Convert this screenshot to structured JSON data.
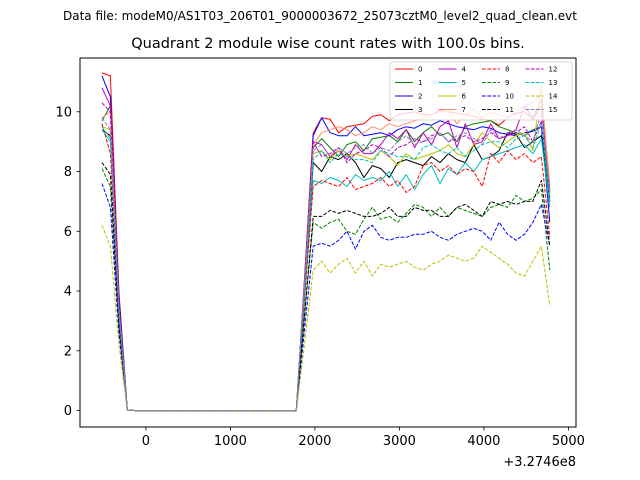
{
  "figure": {
    "suptitle": "Data file: modeM0/AS1T03_206T01_9000003672_25073cztM0_level2_quad_clean.evt"
  },
  "chart_data": {
    "type": "line",
    "title": "Quadrant 2 module wise count rates with 100.0s bins.",
    "xlabel": "",
    "ylabel": "",
    "x_offset_label": "+3.2746e8",
    "xlim": [
      -780,
      5090
    ],
    "ylim": [
      -0.55,
      11.8
    ],
    "xticks": [
      0,
      1000,
      2000,
      3000,
      4000,
      5000
    ],
    "xtick_labels": [
      "0",
      "1000",
      "2000",
      "3000",
      "4000",
      "5000"
    ],
    "yticks": [
      0,
      2,
      4,
      6,
      8,
      10
    ],
    "ytick_labels": [
      "0",
      "2",
      "4",
      "6",
      "8",
      "10"
    ],
    "legend_position": "top-right",
    "legend_columns": 4,
    "x": [
      -520,
      -420,
      -320,
      -220,
      -120,
      -20,
      80,
      180,
      280,
      380,
      480,
      580,
      680,
      780,
      880,
      980,
      1080,
      1180,
      1280,
      1380,
      1480,
      1580,
      1680,
      1780,
      1880,
      1980,
      2080,
      2180,
      2280,
      2380,
      2480,
      2580,
      2680,
      2780,
      2880,
      2980,
      3080,
      3180,
      3280,
      3380,
      3480,
      3580,
      3680,
      3780,
      3880,
      3980,
      4080,
      4180,
      4280,
      4380,
      4480,
      4580,
      4680,
      4780
    ],
    "series": [
      {
        "name": "0",
        "color": "#ff0000",
        "dash": "solid",
        "values": [
          11.3,
          11.2,
          4.0,
          0.02,
          0,
          0,
          0,
          0,
          0,
          0,
          0,
          0,
          0,
          0,
          0,
          0,
          0,
          0,
          0,
          0,
          0,
          0,
          0,
          0,
          4.6,
          9.3,
          9.8,
          9.75,
          9.3,
          9.5,
          9.55,
          9.6,
          9.85,
          9.9,
          9.7,
          9.9,
          9.95,
          10.0,
          9.9,
          9.9,
          10.05,
          10.0,
          9.95,
          9.9,
          9.85,
          9.75,
          9.7,
          9.55,
          9.8,
          9.95,
          10.0,
          9.75,
          10.2,
          7.4
        ]
      },
      {
        "name": "1",
        "color": "#008000",
        "dash": "solid",
        "values": [
          9.7,
          10.2,
          3.5,
          0.02,
          0,
          0,
          0,
          0,
          0,
          0,
          0,
          0,
          0,
          0,
          0,
          0,
          0,
          0,
          0,
          0,
          0,
          0,
          0,
          0,
          4.3,
          8.8,
          9.1,
          8.8,
          8.5,
          8.9,
          9.0,
          8.7,
          9.1,
          9.15,
          9.2,
          9.0,
          9.4,
          9.0,
          9.3,
          9.5,
          9.2,
          9.3,
          9.0,
          9.5,
          9.6,
          9.65,
          9.7,
          9.5,
          9.4,
          9.3,
          9.2,
          9.4,
          9.5,
          7.3
        ]
      },
      {
        "name": "2",
        "color": "#0000ff",
        "dash": "solid",
        "values": [
          11.2,
          10.5,
          3.8,
          0.02,
          0,
          0,
          0,
          0,
          0,
          0,
          0,
          0,
          0,
          0,
          0,
          0,
          0,
          0,
          0,
          0,
          0,
          0,
          0,
          0,
          4.5,
          9.2,
          9.8,
          9.3,
          9.2,
          9.2,
          9.5,
          9.2,
          9.25,
          9.3,
          9.2,
          9.4,
          9.5,
          9.45,
          9.6,
          9.55,
          9.7,
          9.6,
          9.5,
          9.45,
          9.4,
          9.5,
          9.45,
          9.3,
          9.25,
          9.2,
          9.3,
          9.35,
          9.5,
          6.3
        ]
      },
      {
        "name": "3",
        "color": "#000000",
        "dash": "solid",
        "values": [
          9.4,
          9.2,
          3.3,
          0.02,
          0,
          0,
          0,
          0,
          0,
          0,
          0,
          0,
          0,
          0,
          0,
          0,
          0,
          0,
          0,
          0,
          0,
          0,
          0,
          0,
          4.0,
          8.3,
          8.0,
          8.5,
          8.4,
          8.6,
          8.3,
          7.8,
          8.2,
          8.1,
          7.8,
          8.3,
          8.4,
          8.3,
          8.2,
          8.5,
          8.3,
          8.6,
          8.4,
          8.3,
          8.9,
          8.4,
          8.5,
          8.7,
          9.3,
          9.25,
          8.8,
          9.0,
          9.2,
          7.0
        ]
      },
      {
        "name": "4",
        "color": "#bf00bf",
        "dash": "solid",
        "values": [
          10.8,
          10.2,
          3.5,
          0.02,
          0,
          0,
          0,
          0,
          0,
          0,
          0,
          0,
          0,
          0,
          0,
          0,
          0,
          0,
          0,
          0,
          0,
          0,
          0,
          0,
          4.3,
          9.0,
          8.9,
          8.5,
          8.7,
          8.4,
          8.9,
          8.6,
          8.6,
          8.9,
          9.3,
          9.1,
          9.4,
          8.8,
          9.3,
          8.9,
          9.5,
          9.7,
          8.8,
          9.6,
          8.9,
          9.0,
          9.6,
          9.1,
          9.2,
          9.4,
          10.2,
          9.8,
          10.4,
          7.1
        ]
      },
      {
        "name": "5",
        "color": "#00bfbf",
        "dash": "solid",
        "values": [
          9.4,
          9.0,
          3.3,
          0.02,
          0,
          0,
          0,
          0,
          0,
          0,
          0,
          0,
          0,
          0,
          0,
          0,
          0,
          0,
          0,
          0,
          0,
          0,
          0,
          0,
          3.8,
          7.7,
          7.6,
          7.8,
          7.7,
          7.5,
          7.9,
          7.7,
          7.8,
          7.7,
          8.0,
          7.5,
          7.9,
          7.4,
          7.9,
          8.2,
          7.6,
          8.1,
          7.9,
          8.3,
          8.0,
          8.4,
          8.5,
          8.6,
          8.7,
          8.8,
          8.9,
          8.6,
          9.1,
          6.8
        ]
      },
      {
        "name": "6",
        "color": "#bfbf00",
        "dash": "solid",
        "values": [
          9.5,
          9.4,
          3.3,
          0.02,
          0,
          0,
          0,
          0,
          0,
          0,
          0,
          0,
          0,
          0,
          0,
          0,
          0,
          0,
          0,
          0,
          0,
          0,
          0,
          0,
          4.2,
          8.6,
          8.7,
          8.4,
          8.7,
          8.5,
          8.6,
          8.5,
          8.4,
          8.7,
          8.5,
          8.2,
          8.6,
          8.4,
          8.5,
          8.6,
          8.7,
          8.9,
          8.6,
          8.5,
          8.9,
          9.3,
          9.0,
          8.8,
          9.0,
          9.2,
          9.3,
          8.7,
          10.9,
          7.2
        ]
      },
      {
        "name": "7",
        "color": "#ff8c69",
        "dash": "solid",
        "values": [
          9.8,
          10.0,
          3.4,
          0.02,
          0,
          0,
          0,
          0,
          0,
          0,
          0,
          0,
          0,
          0,
          0,
          0,
          0,
          0,
          0,
          0,
          0,
          0,
          0,
          0,
          4.4,
          8.9,
          9.3,
          9.4,
          9.5,
          9.4,
          9.2,
          9.3,
          9.5,
          9.4,
          9.6,
          9.5,
          9.6,
          9.7,
          9.8,
          9.9,
          10.0,
          10.0,
          9.6,
          9.9,
          10.1,
          9.8,
          10.0,
          9.9,
          9.8,
          10.0,
          10.2,
          10.3,
          10.6,
          7.6
        ]
      },
      {
        "name": "8",
        "color": "#ff0000",
        "dash": "dashed",
        "values": [
          9.6,
          8.6,
          3.1,
          0.02,
          0,
          0,
          0,
          0,
          0,
          0,
          0,
          0,
          0,
          0,
          0,
          0,
          0,
          0,
          0,
          0,
          0,
          0,
          0,
          0,
          3.9,
          7.5,
          7.7,
          7.6,
          7.5,
          7.8,
          7.4,
          7.5,
          7.6,
          7.8,
          7.5,
          7.7,
          7.3,
          7.5,
          8.2,
          8.3,
          8.0,
          8.2,
          7.9,
          8.1,
          8.0,
          7.5,
          8.6,
          8.3,
          8.7,
          8.4,
          8.6,
          8.3,
          8.5,
          5.8
        ]
      },
      {
        "name": "9",
        "color": "#008000",
        "dash": "dashed",
        "values": [
          8.1,
          7.5,
          2.8,
          0.02,
          0,
          0,
          0,
          0,
          0,
          0,
          0,
          0,
          0,
          0,
          0,
          0,
          0,
          0,
          0,
          0,
          0,
          0,
          0,
          0,
          3.3,
          6.3,
          6.1,
          6.3,
          6.4,
          6.0,
          5.9,
          6.4,
          6.8,
          6.4,
          6.5,
          6.3,
          6.6,
          6.9,
          6.8,
          6.5,
          6.8,
          6.5,
          6.8,
          6.7,
          6.6,
          6.5,
          6.8,
          6.9,
          6.8,
          7.2,
          7.0,
          7.1,
          7.4,
          4.7
        ]
      },
      {
        "name": "10",
        "color": "#0000ff",
        "dash": "dashed",
        "values": [
          7.6,
          6.8,
          2.6,
          0.02,
          0,
          0,
          0,
          0,
          0,
          0,
          0,
          0,
          0,
          0,
          0,
          0,
          0,
          0,
          0,
          0,
          0,
          0,
          0,
          0,
          2.8,
          5.5,
          5.6,
          5.5,
          5.7,
          6.0,
          5.4,
          6.0,
          6.2,
          5.8,
          5.7,
          5.8,
          5.8,
          5.9,
          5.9,
          6.0,
          5.8,
          5.7,
          5.9,
          6.0,
          6.1,
          6.0,
          5.7,
          6.3,
          5.9,
          5.7,
          5.9,
          6.3,
          6.9,
          5.5
        ]
      },
      {
        "name": "11",
        "color": "#000000",
        "dash": "dashed",
        "values": [
          8.3,
          7.9,
          2.9,
          0.02,
          0,
          0,
          0,
          0,
          0,
          0,
          0,
          0,
          0,
          0,
          0,
          0,
          0,
          0,
          0,
          0,
          0,
          0,
          0,
          0,
          3.3,
          6.5,
          6.5,
          6.7,
          6.6,
          6.7,
          6.6,
          6.5,
          6.5,
          6.6,
          6.8,
          6.5,
          6.5,
          6.8,
          6.7,
          6.7,
          6.5,
          6.5,
          6.8,
          6.9,
          6.7,
          6.5,
          7.0,
          6.9,
          7.0,
          6.9,
          7.0,
          7.0,
          7.7,
          5.5
        ]
      },
      {
        "name": "12",
        "color": "#bf00bf",
        "dash": "dashed",
        "values": [
          10.3,
          10.0,
          3.5,
          0.02,
          0,
          0,
          0,
          0,
          0,
          0,
          0,
          0,
          0,
          0,
          0,
          0,
          0,
          0,
          0,
          0,
          0,
          0,
          0,
          0,
          4.4,
          9.0,
          8.5,
          8.6,
          8.8,
          8.3,
          8.6,
          8.7,
          8.9,
          8.8,
          8.5,
          8.8,
          8.9,
          9.1,
          9.0,
          9.2,
          9.3,
          9.0,
          9.1,
          9.2,
          9.0,
          9.1,
          9.3,
          9.1,
          9.2,
          9.3,
          9.5,
          9.0,
          9.7,
          7.4
        ]
      },
      {
        "name": "13",
        "color": "#00bfbf",
        "dash": "dashed",
        "values": [
          9.5,
          9.1,
          3.2,
          0.02,
          0,
          0,
          0,
          0,
          0,
          0,
          0,
          0,
          0,
          0,
          0,
          0,
          0,
          0,
          0,
          0,
          0,
          0,
          0,
          0,
          4.2,
          8.4,
          8.7,
          8.3,
          8.6,
          8.5,
          8.4,
          8.4,
          8.3,
          8.7,
          8.6,
          8.5,
          8.5,
          8.4,
          8.8,
          8.9,
          8.7,
          8.6,
          8.8,
          8.5,
          8.7,
          8.9,
          9.0,
          9.0,
          8.8,
          9.1,
          9.2,
          8.8,
          9.6,
          7.0
        ]
      },
      {
        "name": "14",
        "color": "#bfbf00",
        "dash": "dashed",
        "values": [
          6.2,
          5.5,
          2.2,
          0.02,
          0,
          0,
          0,
          0,
          0,
          0,
          0,
          0,
          0,
          0,
          0,
          0,
          0,
          0,
          0,
          0,
          0,
          0,
          0,
          0,
          2.3,
          4.7,
          5.0,
          4.6,
          4.9,
          5.1,
          4.6,
          5.0,
          4.5,
          4.9,
          4.8,
          4.9,
          5.0,
          4.8,
          4.7,
          4.9,
          5.0,
          5.2,
          5.1,
          5.0,
          5.1,
          5.5,
          5.3,
          5.1,
          4.9,
          4.6,
          4.5,
          5.0,
          5.5,
          3.5
        ]
      },
      {
        "name": "15",
        "color": "#7f7fbf",
        "dash": "dashed",
        "values": [
          9.8,
          9.4,
          3.4,
          0.02,
          0,
          0,
          0,
          0,
          0,
          0,
          0,
          0,
          0,
          0,
          0,
          0,
          0,
          0,
          0,
          0,
          0,
          0,
          0,
          0,
          4.3,
          8.7,
          8.9,
          8.5,
          8.8,
          8.6,
          8.8,
          8.9,
          8.6,
          8.8,
          8.7,
          9.0,
          9.2,
          8.9,
          9.0,
          9.1,
          9.3,
          9.0,
          9.2,
          9.3,
          9.1,
          8.9,
          9.4,
          9.1,
          9.3,
          9.4,
          9.2,
          9.0,
          10.0,
          7.3
        ]
      }
    ]
  }
}
